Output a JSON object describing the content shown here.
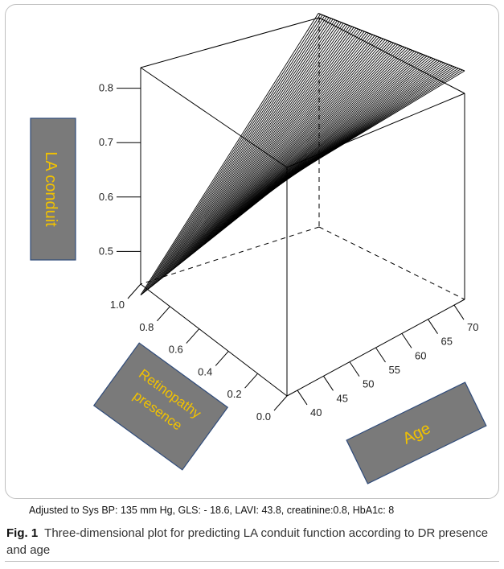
{
  "chart_data": {
    "type": "surface",
    "z_label": "LA conduit",
    "x_label": "Age",
    "y_label": "Retinopathy presence",
    "z_ticks": [
      0.5,
      0.6,
      0.7,
      0.8
    ],
    "x_ticks": [
      40,
      45,
      50,
      55,
      60,
      65,
      70
    ],
    "y_ticks": [
      0.0,
      0.2,
      0.4,
      0.6,
      0.8,
      1.0
    ],
    "x_range": [
      38,
      72
    ],
    "y_range": [
      0.0,
      1.0
    ],
    "z_range": [
      0.44,
      0.86
    ],
    "surface_corners": [
      {
        "age": 38,
        "retinopathy": 0.0,
        "la_conduit": 0.84
      },
      {
        "age": 72,
        "retinopathy": 0.0,
        "la_conduit": 0.86
      },
      {
        "age": 38,
        "retinopathy": 1.0,
        "la_conduit": 0.42
      },
      {
        "age": 72,
        "retinopathy": 1.0,
        "la_conduit": 0.76
      }
    ]
  },
  "adjusted_note": "Adjusted to Sys BP: 135 mm Hg, GLS: - 18.6, LAVI: 43.8, creatinine:0.8,  HbA1c: 8",
  "caption": {
    "label": "Fig. 1",
    "text": "Three-dimensional plot for predicting LA conduit function according to DR presence and age"
  },
  "colors": {
    "box_fill": "#7a7a7a",
    "box_text": "#f2c200",
    "surface": "#000000"
  }
}
